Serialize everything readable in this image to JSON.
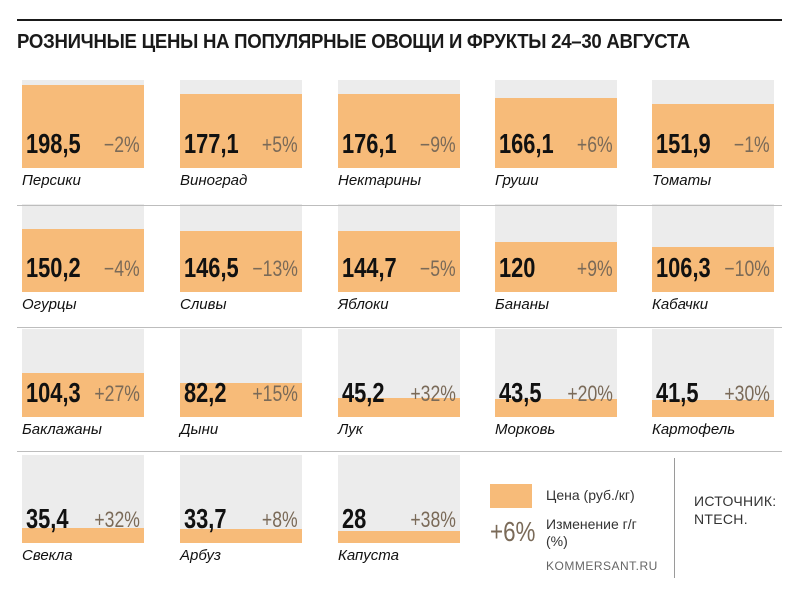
{
  "title": "РОЗНИЧНЫЕ ЦЕНЫ НА ПОПУЛЯРНЫЕ ОВОЩИ И ФРУКТЫ 24–30 АВГУСТА",
  "colors": {
    "fill": "#f7bb79",
    "track": "#ececec",
    "change": "#7a6a58"
  },
  "chart_data": {
    "type": "bar",
    "title": "РОЗНИЧНЫЕ ЦЕНЫ НА ПОПУЛЯРНЫЕ ОВОЩИ И ФРУКТЫ 24–30 АВГУСТА",
    "ylim": [
      0,
      210
    ],
    "items": [
      {
        "name": "Персики",
        "price": 198.5,
        "price_label": "198,5",
        "change_label": "−2%"
      },
      {
        "name": "Виноград",
        "price": 177.1,
        "price_label": "177,1",
        "change_label": "+5%"
      },
      {
        "name": "Нектарины",
        "price": 176.1,
        "price_label": "176,1",
        "change_label": "−9%"
      },
      {
        "name": "Груши",
        "price": 166.1,
        "price_label": "166,1",
        "change_label": "+6%"
      },
      {
        "name": "Томаты",
        "price": 151.9,
        "price_label": "151,9",
        "change_label": "−1%"
      },
      {
        "name": "Огурцы",
        "price": 150.2,
        "price_label": "150,2",
        "change_label": "−4%"
      },
      {
        "name": "Сливы",
        "price": 146.5,
        "price_label": "146,5",
        "change_label": "−13%"
      },
      {
        "name": "Яблоки",
        "price": 144.7,
        "price_label": "144,7",
        "change_label": "−5%"
      },
      {
        "name": "Бананы",
        "price": 120,
        "price_label": "120",
        "change_label": "+9%"
      },
      {
        "name": "Кабачки",
        "price": 106.3,
        "price_label": "106,3",
        "change_label": "−10%"
      },
      {
        "name": "Баклажаны",
        "price": 104.3,
        "price_label": "104,3",
        "change_label": "+27%"
      },
      {
        "name": "Дыни",
        "price": 82.2,
        "price_label": "82,2",
        "change_label": "+15%"
      },
      {
        "name": "Лук",
        "price": 45.2,
        "price_label": "45,2",
        "change_label": "+32%"
      },
      {
        "name": "Морковь",
        "price": 43.5,
        "price_label": "43,5",
        "change_label": "+20%"
      },
      {
        "name": "Картофель",
        "price": 41.5,
        "price_label": "41,5",
        "change_label": "+30%"
      },
      {
        "name": "Свекла",
        "price": 35.4,
        "price_label": "35,4",
        "change_label": "+32%"
      },
      {
        "name": "Арбуз",
        "price": 33.7,
        "price_label": "33,7",
        "change_label": "+8%"
      },
      {
        "name": "Капуста",
        "price": 28,
        "price_label": "28",
        "change_label": "+38%"
      }
    ]
  },
  "legend": {
    "price_label": "Цена (руб./кг)",
    "change_sample": "+6%",
    "change_label": "Изменение г/г (%)",
    "site": "KOMMERSANT.RU"
  },
  "source": "ИСТОЧНИК: NTECH."
}
